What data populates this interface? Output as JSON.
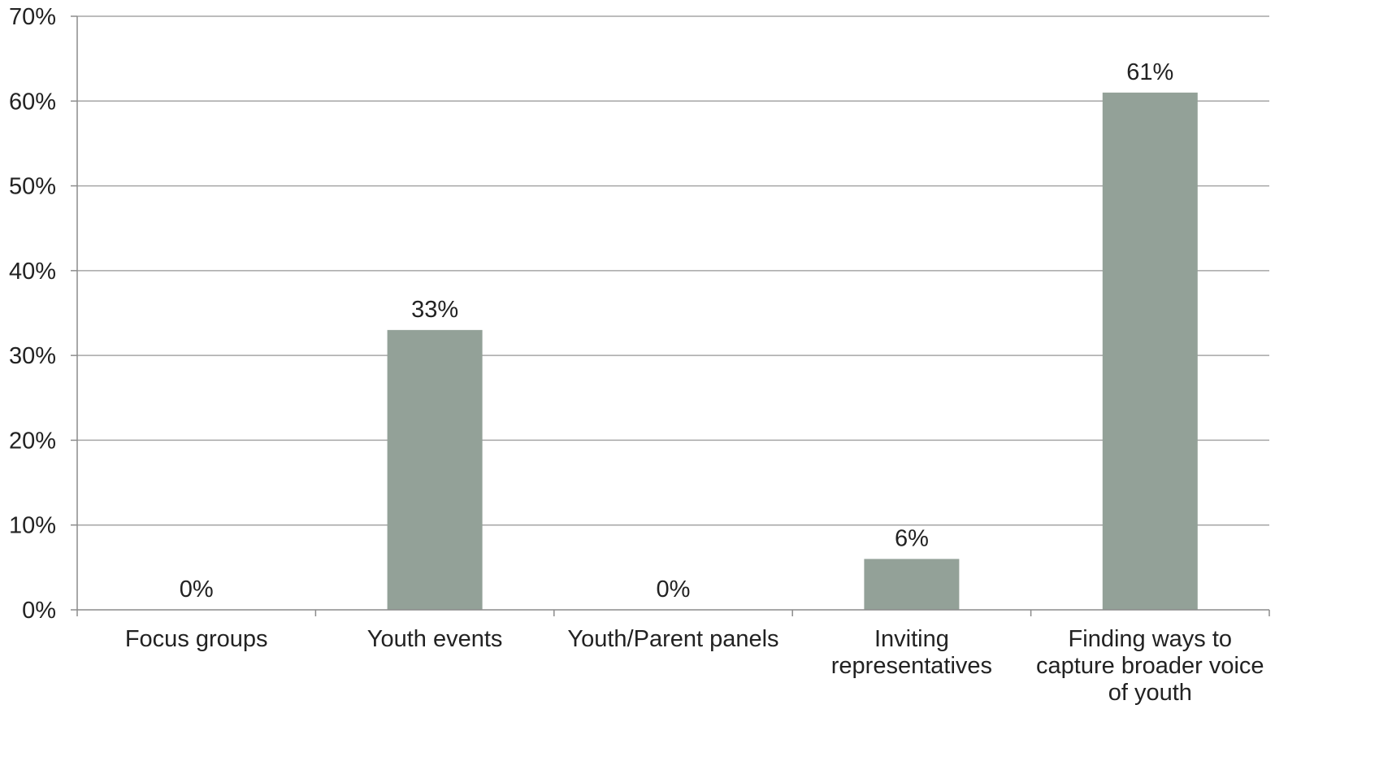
{
  "chart_data": {
    "type": "bar",
    "categories": [
      [
        "Focus groups"
      ],
      [
        "Youth events"
      ],
      [
        "Youth/Parent panels"
      ],
      [
        "Inviting",
        "representatives"
      ],
      [
        "Finding ways to",
        "capture broader voice",
        "of youth"
      ]
    ],
    "values": [
      0,
      33,
      0,
      6,
      61
    ],
    "data_labels": [
      "0%",
      "33%",
      "0%",
      "6%",
      "61%"
    ],
    "ylim": [
      0,
      70
    ],
    "yticks": [
      0,
      10,
      20,
      30,
      40,
      50,
      60,
      70
    ],
    "ytick_labels": [
      "0%",
      "10%",
      "20%",
      "30%",
      "40%",
      "50%",
      "60%",
      "70%"
    ],
    "grid": true,
    "legend": "none",
    "title": "",
    "xlabel": "",
    "ylabel": "",
    "colors": {
      "bar": "#93a198",
      "grid": "#a6a6a6",
      "axis": "#8c8c8c",
      "text": "#222222"
    }
  }
}
